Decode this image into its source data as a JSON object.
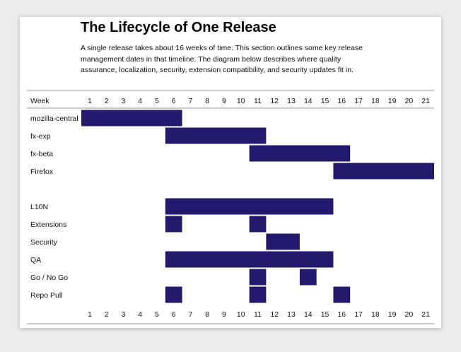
{
  "title": "The Lifecycle of One Release",
  "description": "A single release takes about 16 weeks of time. This section outlines some key release management dates in that timeline. The diagram below describes where quality assurance, localization, security, extension compatibility, and security updates fit in.",
  "colors": {
    "bar": "#231a6e",
    "rule": "#999999",
    "background": "#ececec",
    "card": "#ffffff"
  },
  "chart_data": {
    "type": "gantt",
    "header_label": "Week",
    "weeks": [
      "1",
      "2",
      "3",
      "4",
      "5",
      "6",
      "7",
      "8",
      "9",
      "10",
      "11",
      "12",
      "13",
      "14",
      "15",
      "16",
      "17",
      "18",
      "19",
      "20",
      "21"
    ],
    "rows": [
      {
        "label": "mozilla-central",
        "spans": [
          [
            1,
            6
          ]
        ]
      },
      {
        "label": "fx-exp",
        "spans": [
          [
            6,
            11
          ]
        ]
      },
      {
        "label": "fx-beta",
        "spans": [
          [
            11,
            16
          ]
        ]
      },
      {
        "label": "Firefox",
        "spans": [
          [
            16,
            21
          ]
        ]
      },
      {
        "label": "",
        "spans": []
      },
      {
        "label": "L10N",
        "spans": [
          [
            6,
            15
          ]
        ]
      },
      {
        "label": "Extensions",
        "spans": [
          [
            6,
            6
          ],
          [
            11,
            11
          ]
        ]
      },
      {
        "label": "Security",
        "spans": [
          [
            12,
            13
          ]
        ]
      },
      {
        "label": "QA",
        "spans": [
          [
            6,
            15
          ]
        ]
      },
      {
        "label": "Go / No Go",
        "spans": [
          [
            11,
            11
          ],
          [
            14,
            14
          ]
        ]
      },
      {
        "label": "Repo Pull",
        "spans": [
          [
            6,
            6
          ],
          [
            11,
            11
          ],
          [
            16,
            16
          ]
        ]
      }
    ]
  }
}
